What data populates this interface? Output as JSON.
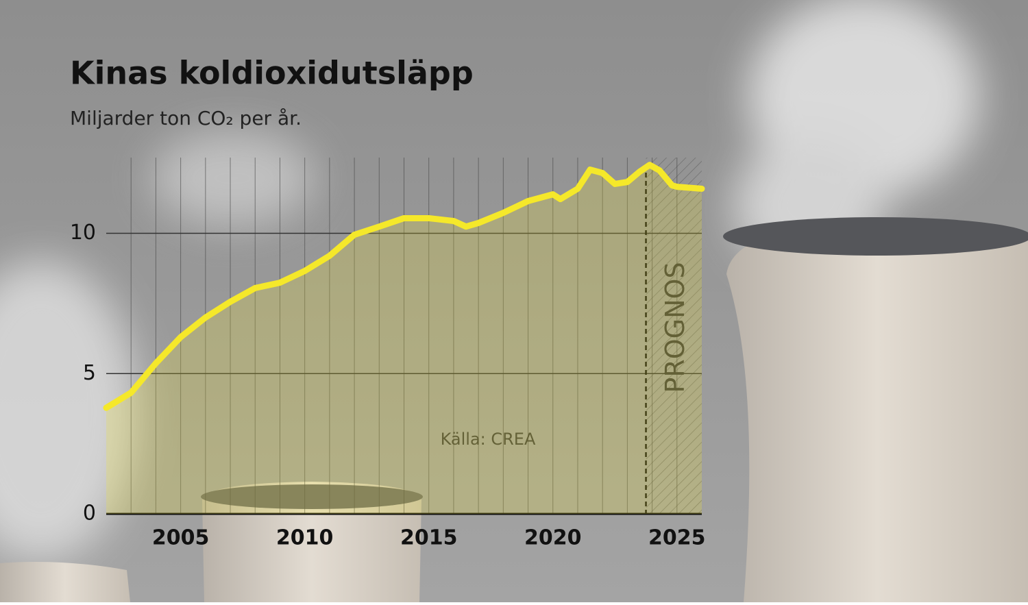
{
  "chart_data": {
    "type": "line",
    "title": "Kinas koldioxidutsläpp",
    "subtitle": "Miljarder ton CO₂ per år.",
    "source": "Källa: CREA",
    "forecast_label": "PROGNOS",
    "forecast_start": 2023.75,
    "x": [
      2002,
      2003,
      2004,
      2005,
      2006,
      2007,
      2008,
      2009,
      2010,
      2011,
      2012,
      2013,
      2014,
      2015,
      2016,
      2016.5,
      2017,
      2018,
      2019,
      2020,
      2020.3,
      2021,
      2021.5,
      2022,
      2022.5,
      2023,
      2023.5,
      2023.9,
      2024.3,
      2024.8,
      2025,
      2026
    ],
    "series": [
      {
        "name": "Koldioxidutsläpp",
        "color": "#f5e82a",
        "values": [
          3.78,
          4.32,
          5.37,
          6.3,
          7.0,
          7.56,
          8.05,
          8.24,
          8.66,
          9.2,
          9.95,
          10.24,
          10.54,
          10.54,
          10.44,
          10.24,
          10.37,
          10.73,
          11.15,
          11.39,
          11.22,
          11.59,
          12.27,
          12.15,
          11.76,
          11.83,
          12.2,
          12.44,
          12.24,
          11.71,
          11.66,
          11.59
        ]
      }
    ],
    "xlim": [
      2002,
      2026
    ],
    "xticks": [
      2005,
      2010,
      2015,
      2020,
      2025
    ],
    "x_gridlines": [
      2003,
      2004,
      2005,
      2006,
      2007,
      2008,
      2009,
      2010,
      2011,
      2012,
      2013,
      2014,
      2015,
      2016,
      2017,
      2018,
      2019,
      2020,
      2021,
      2022,
      2023,
      2024,
      2025
    ],
    "ylim": [
      0,
      12.7
    ],
    "yticks": [
      0,
      5,
      10
    ],
    "grid": true
  }
}
